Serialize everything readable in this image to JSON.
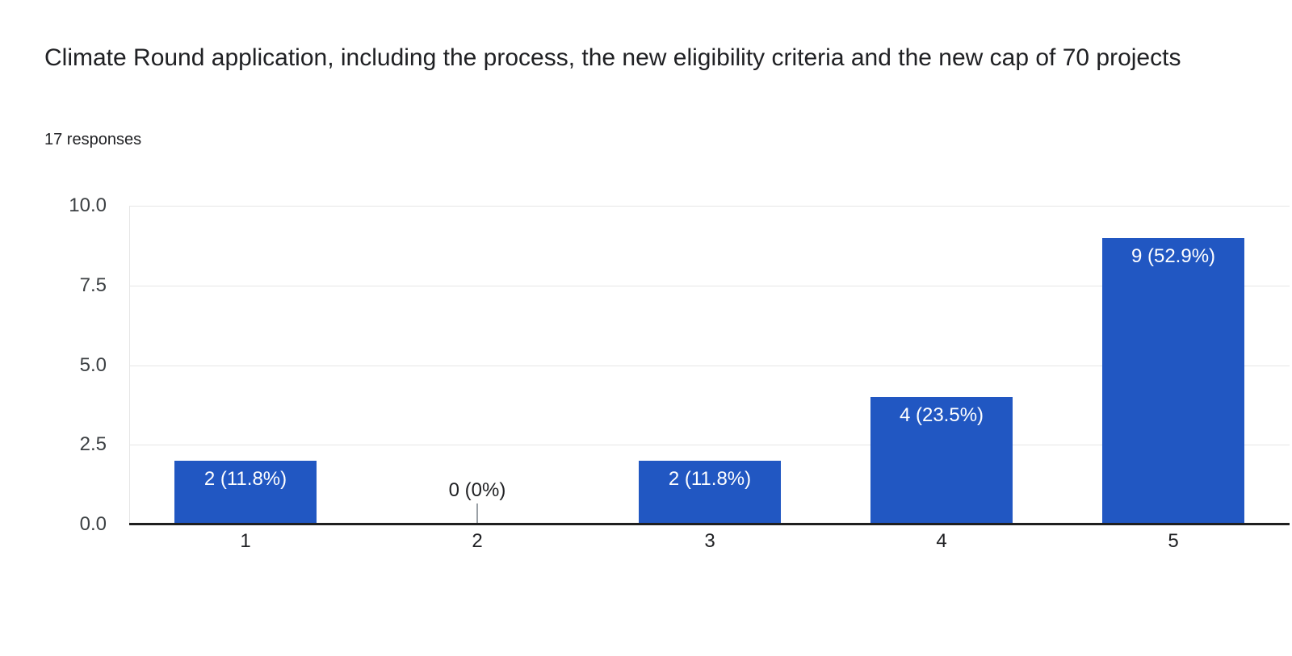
{
  "header": {
    "title": "Climate Round application, including the process, the new eligibility criteria and the new cap of 70 projects",
    "responses": "17 responses"
  },
  "chart_data": {
    "type": "bar",
    "title": "Climate Round application, including the process, the new eligibility criteria and the new cap of 70 projects",
    "subtitle": "17 responses",
    "categories": [
      "1",
      "2",
      "3",
      "4",
      "5"
    ],
    "values": [
      2,
      0,
      2,
      4,
      9
    ],
    "bar_labels": [
      "2 (11.8%)",
      "0 (0%)",
      "2 (11.8%)",
      "4 (23.5%)",
      "9 (52.9%)"
    ],
    "xlabel": "",
    "ylabel": "",
    "ylim": [
      0,
      10
    ],
    "yticks": [
      0,
      2.5,
      5,
      7.5,
      10
    ],
    "ytick_labels": [
      "0.0",
      "2.5",
      "5.0",
      "7.5",
      "10.0"
    ],
    "grid": true,
    "legend": "none",
    "bar_color": "#2157c2",
    "bar_label_color": "#ffffff",
    "zero_label_color": "#202124",
    "axis_color": "#1f1f1f",
    "gridline_color": "#e6e6e6"
  }
}
